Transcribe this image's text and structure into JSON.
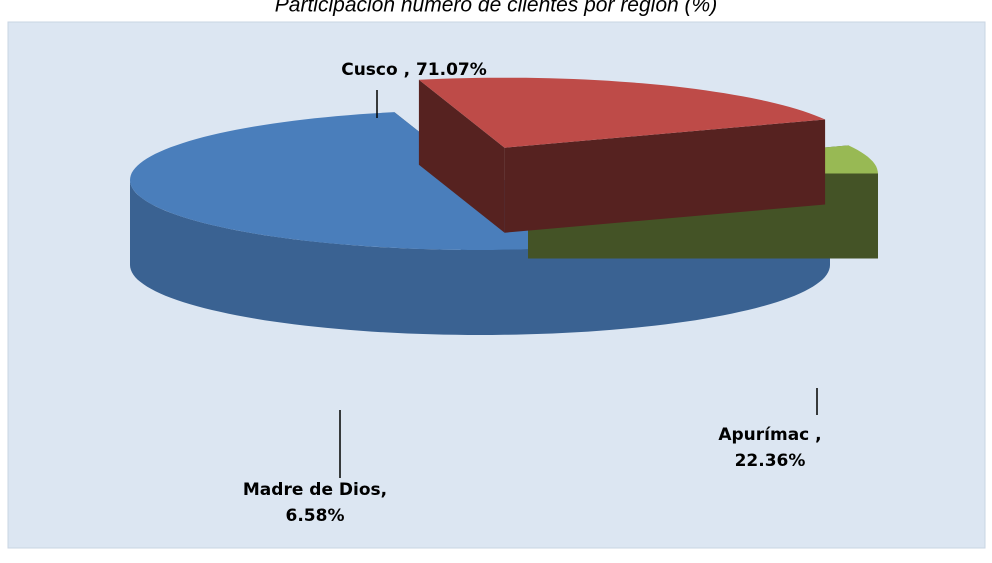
{
  "chart_data": {
    "type": "pie3d",
    "title": "Participación número de clientes por región (%)",
    "values": [
      71.07,
      22.36,
      6.58
    ],
    "value_labels": [
      "Cusco , 71.07%",
      "Apurímac , 22.36%",
      "Madre de Dios, 6.58%"
    ],
    "colors": [
      "#4a7ebb",
      "#be4b48",
      "#98b954"
    ]
  }
}
